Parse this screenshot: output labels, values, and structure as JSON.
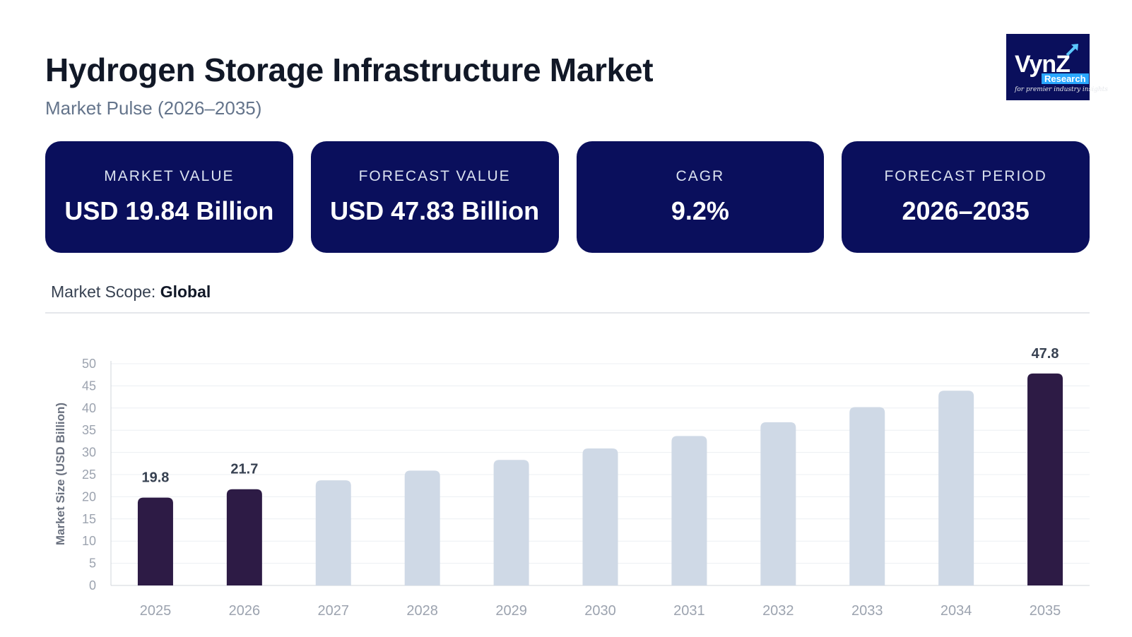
{
  "header": {
    "title": "Hydrogen Storage Infrastructure Market",
    "subtitle": "Market Pulse (2026–2035)"
  },
  "logo": {
    "brand": "VynZ",
    "sub": "Research",
    "tagline": "for premier industry insights",
    "icon": "arrow-up-right-icon"
  },
  "kpis": [
    {
      "label": "MARKET VALUE",
      "value": "USD 19.84 Billion"
    },
    {
      "label": "FORECAST VALUE",
      "value": "USD 47.83 Billion"
    },
    {
      "label": "CAGR",
      "value": "9.2%"
    },
    {
      "label": "FORECAST PERIOD",
      "value": "2026–2035"
    }
  ],
  "scope": {
    "label": "Market Scope: ",
    "value": "Global"
  },
  "colors": {
    "navy": "#0a0f5c",
    "bar_highlight": "#2d1b45",
    "bar_muted": "#cfd9e6",
    "grid": "#eceff3",
    "axis_text": "#9ca3af"
  },
  "chart_data": {
    "type": "bar",
    "ylabel": "Market Size (USD Billion)",
    "xlabel": "",
    "ylim": [
      0,
      50
    ],
    "yticks": [
      0,
      5,
      10,
      15,
      20,
      25,
      30,
      35,
      40,
      45,
      50
    ],
    "grid": true,
    "categories": [
      "2025",
      "2026",
      "2027",
      "2028",
      "2029",
      "2030",
      "2031",
      "2032",
      "2033",
      "2034",
      "2035"
    ],
    "values": [
      19.8,
      21.7,
      23.7,
      25.9,
      28.3,
      30.9,
      33.7,
      36.8,
      40.2,
      43.9,
      47.8
    ],
    "highlighted": [
      true,
      true,
      false,
      false,
      false,
      false,
      false,
      false,
      false,
      false,
      true
    ],
    "data_labels": [
      "19.8",
      "21.7",
      "",
      "",
      "",
      "",
      "",
      "",
      "",
      "",
      "47.8"
    ]
  }
}
